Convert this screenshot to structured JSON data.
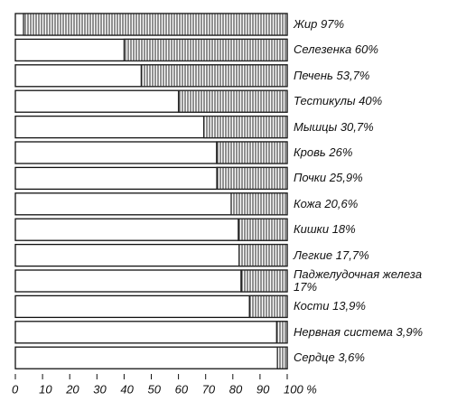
{
  "chart_data": {
    "type": "hbar-share",
    "categories": [
      "Жир",
      "Селезенка",
      "Печень",
      "Тестикулы",
      "Мышцы",
      "Кровь",
      "Почки",
      "Кожа",
      "Кишки",
      "Легкие",
      "Паджелудочная железа",
      "Кости",
      "Нервная система",
      "Сердце"
    ],
    "values": [
      97,
      60,
      53.7,
      40,
      30.7,
      26,
      25.9,
      20.6,
      18,
      17.7,
      17,
      13.9,
      3.9,
      3.6
    ],
    "value_labels": [
      "97%",
      "60%",
      "53,7%",
      "40%",
      "30,7%",
      "26%",
      "25,9%",
      "20,6%",
      "18%",
      "17,7%",
      "17%",
      "13,9%",
      "3,9%",
      "3,6%"
    ],
    "color": "#222222",
    "xlim": [
      0,
      100
    ],
    "xticks": [
      0,
      10,
      20,
      30,
      40,
      50,
      60,
      70,
      80,
      90,
      {
        "value": 100,
        "label": "100 %"
      }
    ]
  }
}
